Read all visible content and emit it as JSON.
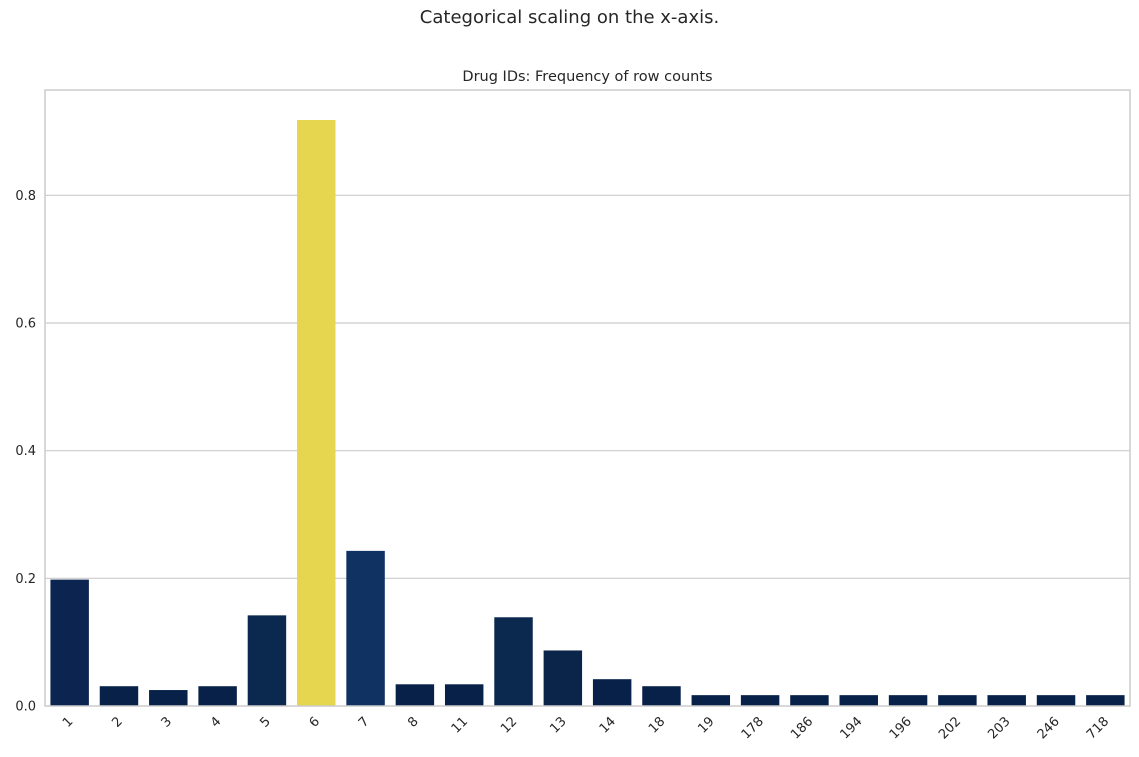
{
  "suptitle": "Categorical scaling on the x-axis.",
  "chart_data": {
    "type": "bar",
    "title": "Drug IDs: Frequency of row counts",
    "xlabel": "",
    "ylabel": "",
    "categories": [
      "1",
      "2",
      "3",
      "4",
      "5",
      "6",
      "7",
      "8",
      "11",
      "12",
      "13",
      "14",
      "18",
      "19",
      "178",
      "186",
      "194",
      "196",
      "202",
      "203",
      "246",
      "718"
    ],
    "values": [
      0.198,
      0.031,
      0.025,
      0.031,
      0.142,
      0.918,
      0.243,
      0.034,
      0.034,
      0.139,
      0.087,
      0.042,
      0.031,
      0.017,
      0.017,
      0.017,
      0.017,
      0.017,
      0.017,
      0.017,
      0.017,
      0.017
    ],
    "ylim": [
      0,
      0.965
    ],
    "yticks": [
      "0.0",
      "0.2",
      "0.4",
      "0.6",
      "0.8"
    ],
    "grid": "horizontal",
    "colors": {
      "1": "#0b2550",
      "2": "#082149",
      "3": "#082149",
      "4": "#082149",
      "5": "#0b284e",
      "6": "#e6d64f",
      "7": "#0f3262",
      "8": "#082149",
      "11": "#082149",
      "12": "#0b284e",
      "13": "#0a244a",
      "14": "#082149",
      "18": "#082149",
      "19": "#082149",
      "178": "#082149",
      "186": "#082149",
      "194": "#082149",
      "196": "#082149",
      "202": "#082149",
      "203": "#082149",
      "246": "#082149",
      "718": "#082149"
    },
    "grid_color": "#cccccc",
    "axis_color": "#cccccc"
  }
}
